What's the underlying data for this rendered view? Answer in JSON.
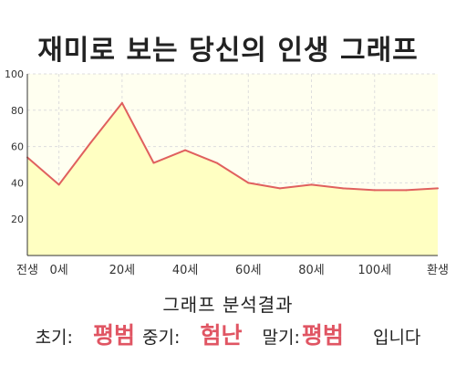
{
  "header": {
    "title": "재미로 보는 당신의 인생 그래프"
  },
  "chart_data": {
    "type": "area",
    "x": [
      -10,
      0,
      10,
      20,
      30,
      40,
      50,
      60,
      70,
      80,
      90,
      100,
      110,
      120
    ],
    "xticks": [
      {
        "x": -10,
        "label": "전생"
      },
      {
        "x": 0,
        "label": "0세"
      },
      {
        "x": 20,
        "label": "20세"
      },
      {
        "x": 40,
        "label": "40세"
      },
      {
        "x": 60,
        "label": "60세"
      },
      {
        "x": 80,
        "label": "80세"
      },
      {
        "x": 100,
        "label": "100세"
      },
      {
        "x": 120,
        "label": "환생"
      }
    ],
    "yticks": [
      20,
      40,
      60,
      80,
      100
    ],
    "ylim": [
      0,
      100
    ],
    "xlim": [
      -10,
      120
    ],
    "series": [
      {
        "values": [
          54,
          39,
          62,
          84,
          51,
          58,
          51,
          40,
          37,
          39,
          37,
          36,
          36,
          37
        ]
      }
    ],
    "grid": true,
    "colors": {
      "line": "#e0605e",
      "fill": "#ffffc2",
      "plot_bg": "#fffff0",
      "grid": "#dddddd"
    }
  },
  "result": {
    "heading": "그래프 분석결과",
    "early_label": "초기:",
    "early_value": "평범",
    "middle_label": "중기:",
    "middle_value": "험난",
    "late_label": "말기:",
    "late_value": "평범",
    "suffix": "입니다"
  }
}
